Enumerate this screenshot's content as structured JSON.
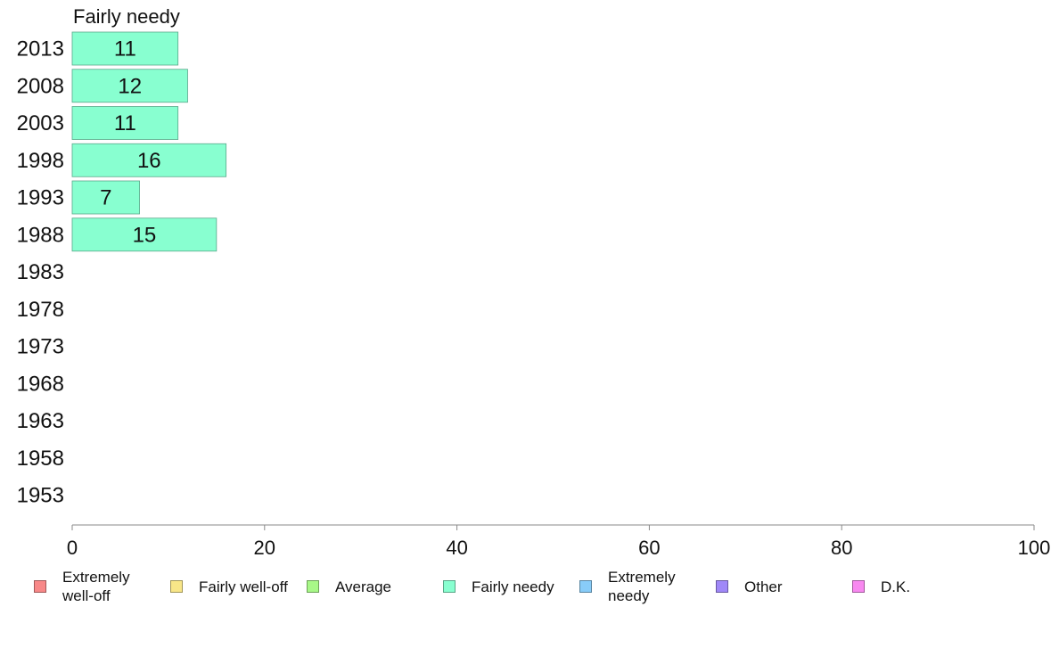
{
  "chart_data": {
    "type": "bar",
    "orientation": "horizontal",
    "title": "Fairly needy",
    "categories": [
      "2013",
      "2008",
      "2003",
      "1998",
      "1993",
      "1988",
      "1983",
      "1978",
      "1973",
      "1968",
      "1963",
      "1958",
      "1953"
    ],
    "series": [
      {
        "name": "Fairly needy",
        "color": "#88ffd0",
        "values": [
          11,
          12,
          11,
          16,
          7,
          15,
          null,
          null,
          null,
          null,
          null,
          null,
          null
        ],
        "labels": [
          "11",
          "12",
          "11",
          "16",
          "7",
          "15",
          "",
          "",
          "",
          "",
          "",
          "",
          ""
        ]
      }
    ],
    "xlim": [
      0,
      100
    ],
    "x_ticks": [
      "0",
      "20",
      "40",
      "60",
      "80",
      "100"
    ],
    "grid": false,
    "legend_placement": "bottom",
    "legend": [
      {
        "label": "Extremely\nwell-off",
        "color": "#f88888"
      },
      {
        "label": "Fairly well-off",
        "color": "#f8e688"
      },
      {
        "label": "Average",
        "color": "#a8f888"
      },
      {
        "label": "Fairly needy",
        "color": "#88ffd0"
      },
      {
        "label": "Extremely\nneedy",
        "color": "#88ccf8"
      },
      {
        "label": "Other",
        "color": "#a088f8"
      },
      {
        "label": "D.K.",
        "color": "#f888f0"
      }
    ]
  }
}
